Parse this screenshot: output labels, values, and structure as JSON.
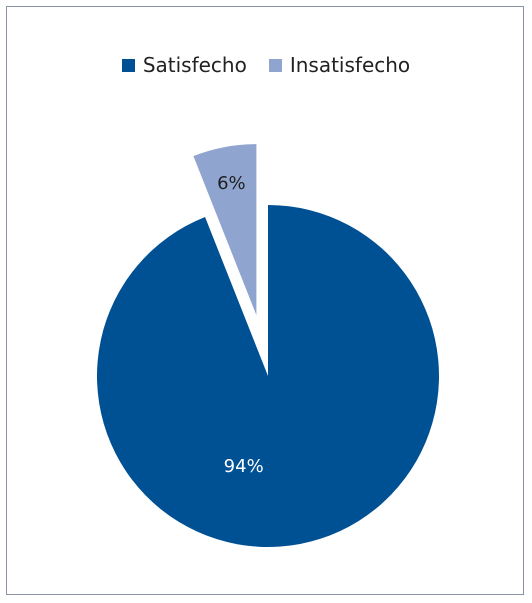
{
  "chart_data": {
    "type": "pie",
    "title": "",
    "categories": [
      "Satisfecho",
      "Insatisfecho"
    ],
    "values": [
      94,
      6
    ],
    "labels": [
      "94%",
      "6%"
    ],
    "colors": [
      "#005094",
      "#8fa5cf"
    ],
    "label_colors": [
      "#ffffff",
      "#1f1f1f"
    ],
    "legend_position": "top",
    "exploded_slice": "Insatisfecho"
  }
}
